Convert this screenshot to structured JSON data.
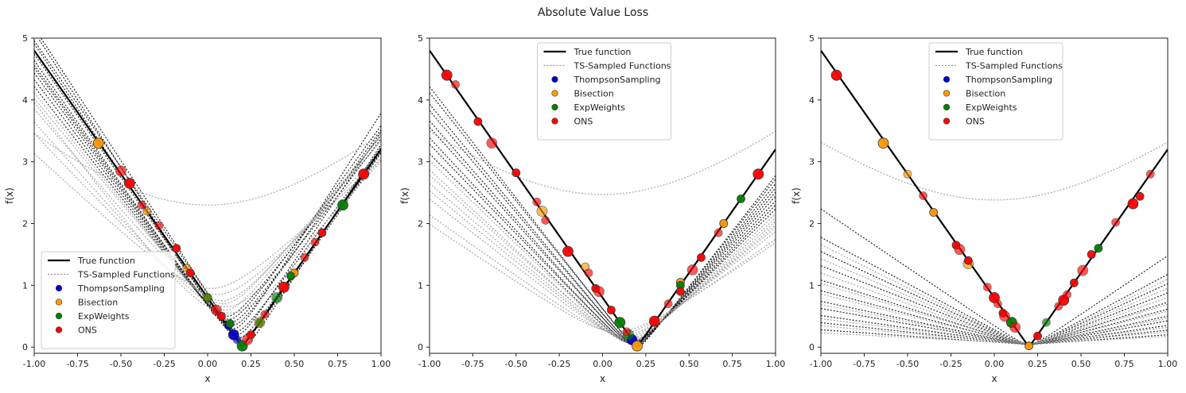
{
  "title": "Absolute Value Loss",
  "legend_labels": {
    "true": "True function",
    "ts": "TS-Sampled Functions",
    "thompson": "ThompsonSampling",
    "bisection": "Bisection",
    "expweights": "ExpWeights",
    "ons": "ONS"
  },
  "colors": {
    "true": "#000000",
    "ts": "#999999",
    "thompson": "#0000cc",
    "bisection": "#ff9900",
    "expweights": "#008000",
    "ons": "#ff0000"
  },
  "chart_data": [
    {
      "type": "line",
      "xlabel": "x",
      "ylabel": "f(x)",
      "xlim": [
        -1.0,
        1.0
      ],
      "ylim": [
        -0.1,
        5.0
      ],
      "xticks": [
        "-1.00",
        "-0.75",
        "-0.50",
        "-0.25",
        "0.00",
        "0.25",
        "0.50",
        "0.75",
        "1.00"
      ],
      "yticks": [
        "0",
        "1",
        "2",
        "3",
        "4",
        "5"
      ],
      "legend_position": "lower left",
      "true_function": {
        "type": "abs",
        "slope": 4.0,
        "x0": 0.2
      },
      "ts_functions": [
        {
          "c": 0.22,
          "s": 4.3,
          "m": 0.05,
          "eps": 0.03,
          "style": "black"
        },
        {
          "c": 0.21,
          "s": 4.1,
          "m": 0.08,
          "eps": 0.02,
          "style": "black"
        },
        {
          "c": 0.2,
          "s": 4.0,
          "m": 0.1,
          "eps": 0.04,
          "style": "black"
        },
        {
          "c": 0.18,
          "s": 3.9,
          "m": 0.15,
          "eps": 0.05,
          "style": "black"
        },
        {
          "c": 0.17,
          "s": 4.2,
          "m": 0.2,
          "eps": 0.05,
          "style": "black"
        },
        {
          "c": 0.16,
          "s": 3.8,
          "m": 0.25,
          "eps": 0.06,
          "style": "black"
        },
        {
          "c": 0.15,
          "s": 4.4,
          "m": 0.3,
          "eps": 0.06,
          "style": "black"
        },
        {
          "c": 0.14,
          "s": 4.0,
          "m": 0.35,
          "eps": 0.07,
          "style": "black"
        },
        {
          "c": 0.13,
          "s": 3.7,
          "m": 0.4,
          "eps": 0.07,
          "style": "black"
        },
        {
          "c": 0.12,
          "s": 3.9,
          "m": 0.45,
          "eps": 0.08,
          "style": "black"
        },
        {
          "c": 0.11,
          "s": 3.6,
          "m": 0.5,
          "eps": 0.08,
          "style": "black"
        },
        {
          "c": 0.1,
          "s": 3.5,
          "m": 0.6,
          "eps": 0.1,
          "style": "gray"
        },
        {
          "c": 0.09,
          "s": 3.4,
          "m": 0.7,
          "eps": 0.12,
          "style": "gray"
        },
        {
          "c": 0.08,
          "s": 3.3,
          "m": 0.75,
          "eps": 0.15,
          "style": "gray"
        },
        {
          "c": 0.1,
          "s": 3.2,
          "m": 0.65,
          "eps": 0.18,
          "style": "gray"
        },
        {
          "c": 0.05,
          "s": 3.0,
          "m": 0.85,
          "eps": 0.2,
          "style": "gray"
        },
        {
          "c": 0.12,
          "s": 3.8,
          "m": 0.55,
          "eps": 0.25,
          "style": "gray"
        },
        {
          "c": 0.02,
          "s": 2.6,
          "m": 0.95,
          "eps": 0.2,
          "style": "gray"
        },
        {
          "c": 0.0,
          "s": 2.6,
          "m": 2.3,
          "eps": 0.9,
          "style": "gray"
        }
      ],
      "points": {
        "thompson": [
          [
            0.15,
            0.2
          ],
          [
            0.17,
            0.12
          ],
          [
            0.12,
            0.35
          ]
        ],
        "bisection": [
          [
            -0.63,
            3.3
          ],
          [
            -0.35,
            2.2
          ],
          [
            0.0,
            0.8
          ],
          [
            0.3,
            0.4
          ],
          [
            0.5,
            1.2
          ],
          [
            -0.12,
            1.28
          ]
        ],
        "expweights": [
          [
            0.2,
            0.02
          ],
          [
            0.0,
            0.8
          ],
          [
            0.13,
            0.38
          ],
          [
            0.4,
            0.8
          ],
          [
            0.48,
            1.15
          ],
          [
            0.3,
            0.4
          ],
          [
            0.78,
            2.3
          ]
        ],
        "ons": [
          [
            -0.45,
            2.65
          ],
          [
            -0.28,
            1.97
          ],
          [
            0.08,
            0.5
          ],
          [
            0.23,
            0.12
          ],
          [
            0.25,
            0.2
          ],
          [
            0.33,
            0.53
          ],
          [
            0.44,
            0.97
          ],
          [
            0.56,
            1.45
          ],
          [
            0.66,
            1.85
          ],
          [
            0.05,
            0.6
          ],
          [
            -0.18,
            1.6
          ],
          [
            -0.38,
            2.3
          ],
          [
            0.9,
            2.8
          ],
          [
            0.62,
            1.7
          ],
          [
            -0.1,
            1.2
          ],
          [
            -0.5,
            2.85
          ]
        ]
      }
    },
    {
      "type": "line",
      "xlabel": "x",
      "ylabel": "f(x)",
      "xlim": [
        -1.0,
        1.0
      ],
      "ylim": [
        -0.1,
        5.0
      ],
      "xticks": [
        "-1.00",
        "-0.75",
        "-0.50",
        "-0.25",
        "0.00",
        "0.25",
        "0.50",
        "0.75",
        "1.00"
      ],
      "yticks": [
        "0",
        "1",
        "2",
        "3",
        "4",
        "5"
      ],
      "legend_position": "upper center",
      "true_function": {
        "type": "abs",
        "slope": 4.0,
        "x0": 0.2
      },
      "ts_functions": [
        {
          "c": 0.2,
          "s": 3.6,
          "m": 0.0,
          "eps": 0.03,
          "style": "black"
        },
        {
          "c": 0.2,
          "s": 3.5,
          "m": 0.02,
          "eps": 0.03,
          "style": "black"
        },
        {
          "c": 0.19,
          "s": 3.4,
          "m": 0.02,
          "eps": 0.04,
          "style": "black"
        },
        {
          "c": 0.19,
          "s": 3.3,
          "m": 0.03,
          "eps": 0.04,
          "style": "black"
        },
        {
          "c": 0.18,
          "s": 3.2,
          "m": 0.04,
          "eps": 0.05,
          "style": "black"
        },
        {
          "c": 0.18,
          "s": 3.1,
          "m": 0.05,
          "eps": 0.05,
          "style": "black"
        },
        {
          "c": 0.17,
          "s": 3.0,
          "m": 0.05,
          "eps": 0.06,
          "style": "black"
        },
        {
          "c": 0.17,
          "s": 2.9,
          "m": 0.06,
          "eps": 0.06,
          "style": "black"
        },
        {
          "c": 0.16,
          "s": 2.8,
          "m": 0.07,
          "eps": 0.07,
          "style": "black"
        },
        {
          "c": 0.16,
          "s": 2.7,
          "m": 0.07,
          "eps": 0.07,
          "style": "gray"
        },
        {
          "c": 0.15,
          "s": 2.6,
          "m": 0.08,
          "eps": 0.08,
          "style": "gray"
        },
        {
          "c": 0.15,
          "s": 2.5,
          "m": 0.1,
          "eps": 0.08,
          "style": "gray"
        },
        {
          "c": 0.14,
          "s": 2.4,
          "m": 0.12,
          "eps": 0.09,
          "style": "gray"
        },
        {
          "c": 0.13,
          "s": 2.3,
          "m": 0.15,
          "eps": 0.1,
          "style": "gray"
        },
        {
          "c": 0.12,
          "s": 2.2,
          "m": 0.18,
          "eps": 0.12,
          "style": "gray"
        },
        {
          "c": 0.1,
          "s": 2.0,
          "m": 0.22,
          "eps": 0.15,
          "style": "gray"
        },
        {
          "c": 0.08,
          "s": 1.9,
          "m": 0.25,
          "eps": 0.18,
          "style": "gray"
        },
        {
          "c": 0.0,
          "s": 2.3,
          "m": 2.47,
          "eps": 0.9,
          "style": "gray"
        }
      ],
      "points": {
        "thompson": [
          [
            0.17,
            0.12
          ]
        ],
        "bisection": [
          [
            0.2,
            0.02
          ],
          [
            -0.1,
            1.3
          ],
          [
            0.7,
            2.0
          ],
          [
            -0.35,
            2.2
          ],
          [
            0.45,
            1.05
          ]
        ],
        "expweights": [
          [
            0.1,
            0.4
          ],
          [
            0.3,
            0.4
          ],
          [
            0.8,
            2.4
          ],
          [
            0.15,
            0.2
          ],
          [
            0.45,
            1.0
          ]
        ],
        "ons": [
          [
            -0.9,
            4.4
          ],
          [
            -0.85,
            4.25
          ],
          [
            -0.72,
            3.65
          ],
          [
            -0.64,
            3.3
          ],
          [
            -0.5,
            2.82
          ],
          [
            -0.33,
            2.05
          ],
          [
            -0.2,
            1.55
          ],
          [
            -0.08,
            1.2
          ],
          [
            -0.04,
            0.95
          ],
          [
            -0.02,
            0.9
          ],
          [
            0.05,
            0.6
          ],
          [
            0.14,
            0.25
          ],
          [
            0.3,
            0.42
          ],
          [
            0.38,
            0.7
          ],
          [
            0.45,
            0.9
          ],
          [
            0.52,
            1.25
          ],
          [
            0.57,
            1.45
          ],
          [
            0.67,
            1.85
          ],
          [
            0.9,
            2.8
          ],
          [
            -0.38,
            2.35
          ]
        ]
      }
    },
    {
      "type": "line",
      "xlabel": "x",
      "ylabel": "f(x)",
      "xlim": [
        -1.0,
        1.0
      ],
      "ylim": [
        -0.1,
        5.0
      ],
      "xticks": [
        "-1.00",
        "-0.75",
        "-0.50",
        "-0.25",
        "0.00",
        "0.25",
        "0.50",
        "0.75",
        "1.00"
      ],
      "yticks": [
        "0",
        "1",
        "2",
        "3",
        "4",
        "5"
      ],
      "legend_position": "upper center",
      "true_function": {
        "type": "abs",
        "slope": 4.0,
        "x0": 0.2
      },
      "ts_functions": [
        {
          "c": 0.2,
          "s": 1.9,
          "m": 0.05,
          "eps": 0.05,
          "style": "black"
        },
        {
          "c": 0.2,
          "s": 1.5,
          "m": 0.05,
          "eps": 0.05,
          "style": "black"
        },
        {
          "c": 0.2,
          "s": 1.3,
          "m": 0.05,
          "eps": 0.05,
          "style": "black"
        },
        {
          "c": 0.2,
          "s": 1.1,
          "m": 0.05,
          "eps": 0.05,
          "style": "black"
        },
        {
          "c": 0.2,
          "s": 0.9,
          "m": 0.05,
          "eps": 0.05,
          "style": "black"
        },
        {
          "c": 0.2,
          "s": 0.75,
          "m": 0.05,
          "eps": 0.05,
          "style": "black"
        },
        {
          "c": 0.2,
          "s": 0.6,
          "m": 0.05,
          "eps": 0.05,
          "style": "black"
        },
        {
          "c": 0.2,
          "s": 0.5,
          "m": 0.05,
          "eps": 0.05,
          "style": "black"
        },
        {
          "c": 0.2,
          "s": 0.4,
          "m": 0.05,
          "eps": 0.05,
          "style": "black"
        },
        {
          "c": 0.2,
          "s": 0.3,
          "m": 0.05,
          "eps": 0.05,
          "style": "black"
        },
        {
          "c": 0.2,
          "s": 0.2,
          "m": 0.05,
          "eps": 0.05,
          "style": "black"
        },
        {
          "c": 0.2,
          "s": 1.4,
          "m": 0.06,
          "eps": 0.06,
          "style": "gray"
        },
        {
          "c": 0.2,
          "s": 1.2,
          "m": 0.06,
          "eps": 0.06,
          "style": "gray"
        },
        {
          "c": 0.2,
          "s": 1.0,
          "m": 0.06,
          "eps": 0.06,
          "style": "gray"
        },
        {
          "c": 0.2,
          "s": 0.85,
          "m": 0.06,
          "eps": 0.06,
          "style": "gray"
        },
        {
          "c": 0.2,
          "s": 0.7,
          "m": 0.06,
          "eps": 0.06,
          "style": "gray"
        },
        {
          "c": 0.2,
          "s": 0.55,
          "m": 0.06,
          "eps": 0.06,
          "style": "gray"
        },
        {
          "c": 0.2,
          "s": 0.35,
          "m": 0.06,
          "eps": 0.06,
          "style": "gray"
        },
        {
          "c": 0.2,
          "s": 0.25,
          "m": 0.06,
          "eps": 0.06,
          "style": "gray"
        },
        {
          "c": 0.2,
          "s": 0.15,
          "m": 0.06,
          "eps": 0.06,
          "style": "gray"
        },
        {
          "c": 0.0,
          "s": 2.1,
          "m": 2.38,
          "eps": 0.9,
          "style": "gray"
        }
      ],
      "points": {
        "thompson": [],
        "bisection": [
          [
            -0.64,
            3.3
          ],
          [
            -0.5,
            2.8
          ],
          [
            -0.35,
            2.18
          ],
          [
            -0.15,
            1.35
          ],
          [
            0.2,
            0.02
          ]
        ],
        "expweights": [
          [
            0.1,
            0.4
          ],
          [
            0.3,
            0.4
          ],
          [
            0.6,
            1.6
          ]
        ],
        "ons": [
          [
            -0.91,
            4.4
          ],
          [
            -0.41,
            2.45
          ],
          [
            -0.22,
            1.65
          ],
          [
            -0.2,
            1.58
          ],
          [
            -0.15,
            1.4
          ],
          [
            -0.04,
            0.97
          ],
          [
            0.0,
            0.8
          ],
          [
            0.02,
            0.7
          ],
          [
            0.05,
            0.55
          ],
          [
            0.06,
            0.5
          ],
          [
            0.25,
            0.18
          ],
          [
            0.37,
            0.66
          ],
          [
            0.4,
            0.76
          ],
          [
            0.42,
            0.85
          ],
          [
            0.46,
            1.04
          ],
          [
            0.51,
            1.24
          ],
          [
            0.56,
            1.5
          ],
          [
            0.7,
            2.02
          ],
          [
            0.8,
            2.32
          ],
          [
            0.9,
            2.8
          ],
          [
            0.84,
            2.44
          ],
          [
            0.12,
            0.32
          ]
        ]
      }
    }
  ]
}
